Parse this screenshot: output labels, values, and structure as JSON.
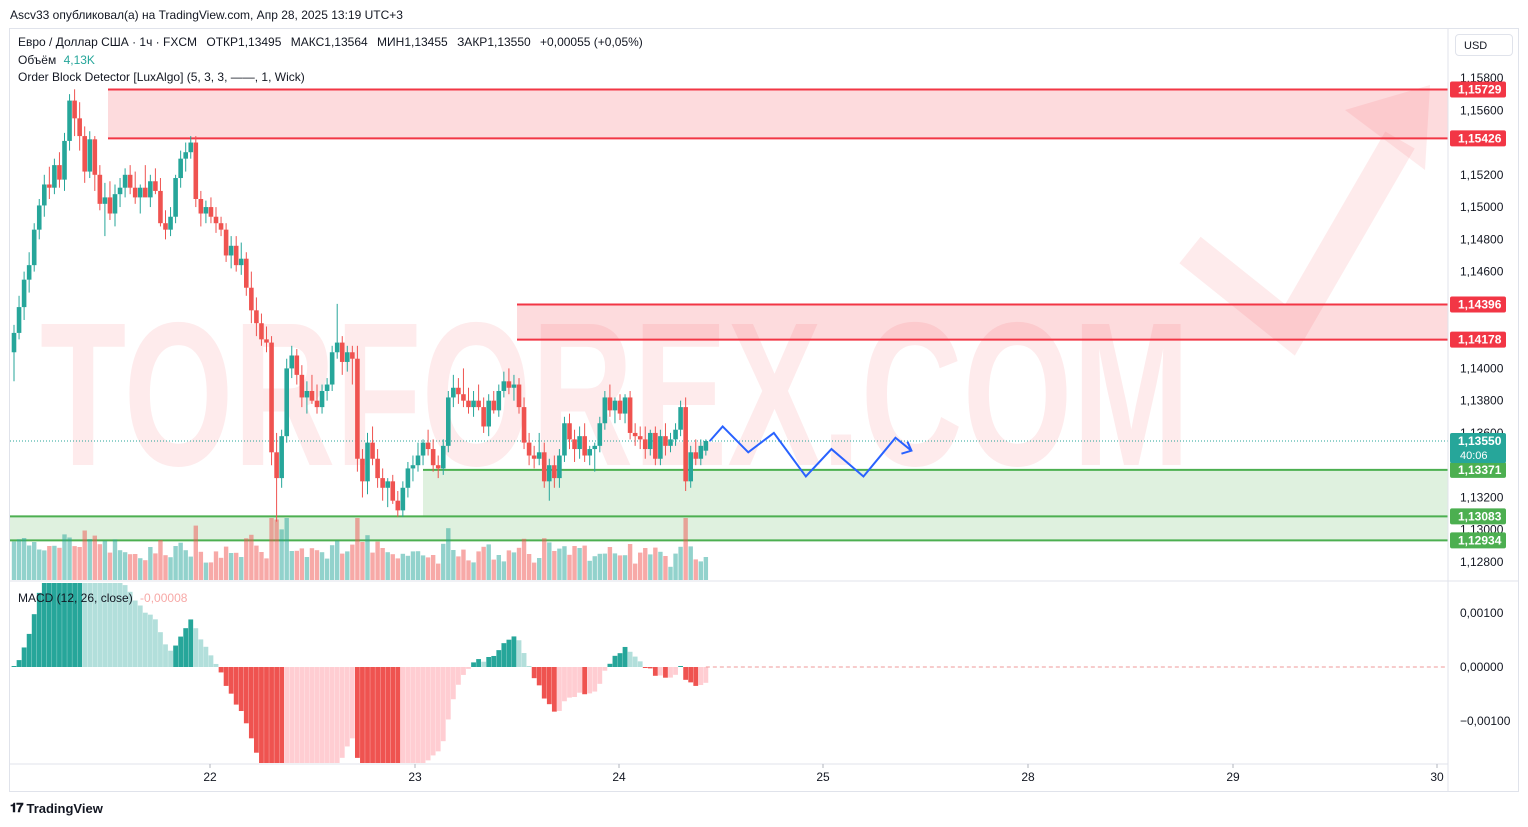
{
  "header": {
    "published": "Ascv33 опубликовал(а) на TradingView.com, Апр 28, 2025 13:19 UTC+3"
  },
  "legend": {
    "symbol": "Евро / Доллар США · 1ч · FXCM",
    "open_label": "ОТКР",
    "open": "1,13495",
    "high_label": "МАКС",
    "high": "1,13564",
    "low_label": "МИН",
    "low": "1,13455",
    "close_label": "ЗАКР",
    "close": "1,13550",
    "change": "+0,00055 (+0,05%)",
    "volume_label": "Объём",
    "volume": "4,13K",
    "indicator": "Order Block Detector [LuxAlgo] (5, 3, 3, ——, 1, Wick)"
  },
  "currency_button": "USD",
  "watermark": "TORFOREX.COM",
  "price_axis": {
    "ticks": [
      "1,15800",
      "1,15600",
      "1,15200",
      "1,15000",
      "1,14800",
      "1,14600",
      "1,14000",
      "1,13800",
      "1,13600",
      "1,13200",
      "1,13000",
      "1,12800"
    ],
    "current_price": "1,13550",
    "countdown": "40:06",
    "levels": [
      {
        "price": "1,15729",
        "color": "#f23645"
      },
      {
        "price": "1,15426",
        "color": "#f23645"
      },
      {
        "price": "1,14396",
        "color": "#f23645"
      },
      {
        "price": "1,14178",
        "color": "#f23645"
      },
      {
        "price": "1,13371",
        "color": "#4caf50"
      },
      {
        "price": "1,13083",
        "color": "#4caf50"
      },
      {
        "price": "1,12934",
        "color": "#4caf50"
      }
    ]
  },
  "macd": {
    "label": "MACD (12, 26, close)",
    "value": "-0,00008",
    "axis_ticks": [
      "0,00100",
      "0,00000",
      "−0,00100"
    ]
  },
  "time_axis": {
    "ticks": [
      "22",
      "23",
      "24",
      "25",
      "28",
      "29",
      "30"
    ]
  },
  "footer": {
    "brand": "TradingView"
  },
  "colors": {
    "up": "#26a69a",
    "down": "#ef5350",
    "bear_zone": "#f23645",
    "bull_zone": "#4caf50",
    "projection": "#2962ff"
  },
  "chart_data": {
    "type": "candlestick",
    "price_ylim": [
      1.1275,
      1.1585
    ],
    "macd_ylim": [
      -0.0015,
      0.00125
    ],
    "candles": [
      [
        1.141,
        1.1427,
        1.1392,
        1.1422
      ],
      [
        1.1422,
        1.1445,
        1.1418,
        1.1438
      ],
      [
        1.1438,
        1.146,
        1.143,
        1.1455
      ],
      [
        1.1455,
        1.1472,
        1.1447,
        1.1464
      ],
      [
        1.1464,
        1.149,
        1.146,
        1.1486
      ],
      [
        1.1486,
        1.1505,
        1.148,
        1.1501
      ],
      [
        1.1501,
        1.152,
        1.1494,
        1.1514
      ],
      [
        1.1514,
        1.1525,
        1.1505,
        1.1512
      ],
      [
        1.1512,
        1.153,
        1.1508,
        1.1526
      ],
      [
        1.1526,
        1.1534,
        1.1512,
        1.1517
      ],
      [
        1.1517,
        1.1546,
        1.151,
        1.1541
      ],
      [
        1.1541,
        1.157,
        1.1535,
        1.1566
      ],
      [
        1.1566,
        1.1573,
        1.1544,
        1.1555
      ],
      [
        1.1555,
        1.1565,
        1.1535,
        1.1544
      ],
      [
        1.1544,
        1.155,
        1.1515,
        1.1522
      ],
      [
        1.1522,
        1.1547,
        1.1518,
        1.1542
      ],
      [
        1.1542,
        1.1544,
        1.151,
        1.152
      ],
      [
        1.152,
        1.1526,
        1.1498,
        1.1502
      ],
      [
        1.1502,
        1.1515,
        1.1482,
        1.1506
      ],
      [
        1.1506,
        1.1516,
        1.1492,
        1.1496
      ],
      [
        1.1496,
        1.1514,
        1.1488,
        1.1508
      ],
      [
        1.1508,
        1.1518,
        1.15,
        1.1512
      ],
      [
        1.1512,
        1.1524,
        1.1506,
        1.152
      ],
      [
        1.152,
        1.1526,
        1.1508,
        1.1512
      ],
      [
        1.1512,
        1.1522,
        1.1502,
        1.1506
      ],
      [
        1.1506,
        1.1514,
        1.1496,
        1.1512
      ],
      [
        1.1512,
        1.1526,
        1.1508,
        1.1506
      ],
      [
        1.1506,
        1.152,
        1.15,
        1.1516
      ],
      [
        1.1516,
        1.1524,
        1.1508,
        1.151
      ],
      [
        1.151,
        1.1518,
        1.1488,
        1.149
      ],
      [
        1.149,
        1.1498,
        1.148,
        1.1486
      ],
      [
        1.1486,
        1.15,
        1.1482,
        1.1494
      ],
      [
        1.1494,
        1.152,
        1.149,
        1.1518
      ],
      [
        1.1518,
        1.1535,
        1.1512,
        1.153
      ],
      [
        1.153,
        1.154,
        1.1522,
        1.1534
      ],
      [
        1.1534,
        1.1544,
        1.153,
        1.154
      ],
      [
        1.154,
        1.1544,
        1.15,
        1.1505
      ],
      [
        1.1505,
        1.151,
        1.1488,
        1.1496
      ],
      [
        1.1496,
        1.1504,
        1.149,
        1.15
      ],
      [
        1.15,
        1.1506,
        1.149,
        1.1494
      ],
      [
        1.1494,
        1.15,
        1.1484,
        1.149
      ],
      [
        1.149,
        1.1494,
        1.1482,
        1.1486
      ],
      [
        1.1486,
        1.149,
        1.1466,
        1.147
      ],
      [
        1.147,
        1.1482,
        1.1462,
        1.1476
      ],
      [
        1.1476,
        1.1482,
        1.146,
        1.1464
      ],
      [
        1.1464,
        1.1478,
        1.1458,
        1.1468
      ],
      [
        1.1468,
        1.1472,
        1.1445,
        1.145
      ],
      [
        1.145,
        1.146,
        1.1428,
        1.1436
      ],
      [
        1.1436,
        1.1444,
        1.142,
        1.1428
      ],
      [
        1.1428,
        1.1434,
        1.1414,
        1.1418
      ],
      [
        1.1418,
        1.1426,
        1.141,
        1.1416
      ],
      [
        1.1416,
        1.142,
        1.134,
        1.1348
      ],
      [
        1.1348,
        1.136,
        1.1305,
        1.1332
      ],
      [
        1.1332,
        1.1362,
        1.1326,
        1.1358
      ],
      [
        1.1358,
        1.1406,
        1.1354,
        1.14
      ],
      [
        1.14,
        1.1414,
        1.1394,
        1.1408
      ],
      [
        1.1408,
        1.1412,
        1.139,
        1.1396
      ],
      [
        1.1396,
        1.1402,
        1.1376,
        1.1382
      ],
      [
        1.1382,
        1.1392,
        1.1372,
        1.1386
      ],
      [
        1.1386,
        1.1396,
        1.1378,
        1.138
      ],
      [
        1.138,
        1.139,
        1.1372,
        1.1376
      ],
      [
        1.1376,
        1.139,
        1.1372,
        1.1386
      ],
      [
        1.1386,
        1.1394,
        1.138,
        1.139
      ],
      [
        1.139,
        1.1414,
        1.1386,
        1.141
      ],
      [
        1.141,
        1.144,
        1.1406,
        1.1416
      ],
      [
        1.1416,
        1.142,
        1.1396,
        1.1404
      ],
      [
        1.1404,
        1.1414,
        1.1398,
        1.141
      ],
      [
        1.141,
        1.1414,
        1.139,
        1.1406
      ],
      [
        1.1406,
        1.1414,
        1.1336,
        1.1344
      ],
      [
        1.1344,
        1.135,
        1.132,
        1.133
      ],
      [
        1.133,
        1.136,
        1.1322,
        1.1354
      ],
      [
        1.1354,
        1.1364,
        1.134,
        1.1344
      ],
      [
        1.1344,
        1.135,
        1.1326,
        1.1332
      ],
      [
        1.1332,
        1.1338,
        1.1318,
        1.1326
      ],
      [
        1.1326,
        1.1332,
        1.1314,
        1.133
      ],
      [
        1.133,
        1.1334,
        1.1316,
        1.1318
      ],
      [
        1.1318,
        1.1324,
        1.1308,
        1.1312
      ],
      [
        1.1312,
        1.133,
        1.1308,
        1.1326
      ],
      [
        1.1326,
        1.1342,
        1.132,
        1.1338
      ],
      [
        1.1338,
        1.1346,
        1.133,
        1.134
      ],
      [
        1.134,
        1.1354,
        1.1336,
        1.1346
      ],
      [
        1.1346,
        1.1356,
        1.134,
        1.1354
      ],
      [
        1.1354,
        1.1362,
        1.1346,
        1.135
      ],
      [
        1.135,
        1.1356,
        1.1336,
        1.134
      ],
      [
        1.134,
        1.1346,
        1.1332,
        1.1338
      ],
      [
        1.1338,
        1.1356,
        1.1334,
        1.1352
      ],
      [
        1.1352,
        1.1386,
        1.1348,
        1.1382
      ],
      [
        1.1382,
        1.1396,
        1.1376,
        1.1388
      ],
      [
        1.1388,
        1.1394,
        1.1378,
        1.1384
      ],
      [
        1.1384,
        1.14,
        1.1376,
        1.138
      ],
      [
        1.138,
        1.1388,
        1.1372,
        1.1376
      ],
      [
        1.1376,
        1.1386,
        1.137,
        1.138
      ],
      [
        1.138,
        1.139,
        1.1374,
        1.1376
      ],
      [
        1.1376,
        1.1382,
        1.136,
        1.1364
      ],
      [
        1.1364,
        1.1384,
        1.1358,
        1.138
      ],
      [
        1.138,
        1.1386,
        1.1372,
        1.1374
      ],
      [
        1.1374,
        1.139,
        1.137,
        1.1386
      ],
      [
        1.1386,
        1.1398,
        1.1382,
        1.1392
      ],
      [
        1.1392,
        1.14,
        1.1384,
        1.1388
      ],
      [
        1.1388,
        1.1396,
        1.138,
        1.139
      ],
      [
        1.139,
        1.1394,
        1.1372,
        1.1376
      ],
      [
        1.1376,
        1.1382,
        1.135,
        1.1354
      ],
      [
        1.1354,
        1.136,
        1.134,
        1.1346
      ],
      [
        1.1346,
        1.1352,
        1.1338,
        1.1344
      ],
      [
        1.1344,
        1.136,
        1.134,
        1.1348
      ],
      [
        1.1348,
        1.1354,
        1.1326,
        1.133
      ],
      [
        1.133,
        1.1344,
        1.1318,
        1.134
      ],
      [
        1.134,
        1.1346,
        1.1326,
        1.1332
      ],
      [
        1.1332,
        1.135,
        1.1326,
        1.1346
      ],
      [
        1.1346,
        1.137,
        1.1342,
        1.1366
      ],
      [
        1.1366,
        1.1372,
        1.135,
        1.1356
      ],
      [
        1.1356,
        1.1362,
        1.1342,
        1.135
      ],
      [
        1.135,
        1.1364,
        1.1344,
        1.1358
      ],
      [
        1.1358,
        1.1366,
        1.1342,
        1.1346
      ],
      [
        1.1346,
        1.1352,
        1.134,
        1.135
      ],
      [
        1.135,
        1.1354,
        1.1336,
        1.1352
      ],
      [
        1.1352,
        1.137,
        1.1348,
        1.1366
      ],
      [
        1.1366,
        1.1386,
        1.1362,
        1.1382
      ],
      [
        1.1382,
        1.139,
        1.137,
        1.1374
      ],
      [
        1.1374,
        1.1382,
        1.1366,
        1.138
      ],
      [
        1.138,
        1.1384,
        1.1368,
        1.1372
      ],
      [
        1.1372,
        1.1384,
        1.1366,
        1.1382
      ],
      [
        1.1382,
        1.1386,
        1.1356,
        1.136
      ],
      [
        1.136,
        1.1366,
        1.1352,
        1.1358
      ],
      [
        1.1358,
        1.1364,
        1.135,
        1.1356
      ],
      [
        1.1356,
        1.1364,
        1.1344,
        1.135
      ],
      [
        1.135,
        1.1362,
        1.1346,
        1.136
      ],
      [
        1.136,
        1.1364,
        1.134,
        1.1344
      ],
      [
        1.1344,
        1.1362,
        1.134,
        1.1358
      ],
      [
        1.1358,
        1.1366,
        1.1346,
        1.1352
      ],
      [
        1.1352,
        1.136,
        1.1348,
        1.1356
      ],
      [
        1.1356,
        1.1366,
        1.1352,
        1.1362
      ],
      [
        1.1362,
        1.138,
        1.1358,
        1.1376
      ],
      [
        1.1376,
        1.1382,
        1.1324,
        1.133
      ],
      [
        1.133,
        1.1352,
        1.1326,
        1.1348
      ],
      [
        1.1348,
        1.1356,
        1.134,
        1.1344
      ],
      [
        1.1344,
        1.1356,
        1.134,
        1.1352
      ],
      [
        1.1349,
        1.1356,
        1.1346,
        1.1355
      ]
    ],
    "projection_path": [
      [
        1.1355,
        0
      ],
      [
        1.1364,
        4
      ],
      [
        1.1348,
        12
      ],
      [
        1.136,
        20
      ],
      [
        1.1333,
        30
      ],
      [
        1.135,
        38
      ],
      [
        1.1333,
        48
      ],
      [
        1.1357,
        58
      ],
      [
        1.1349,
        63
      ]
    ]
  }
}
